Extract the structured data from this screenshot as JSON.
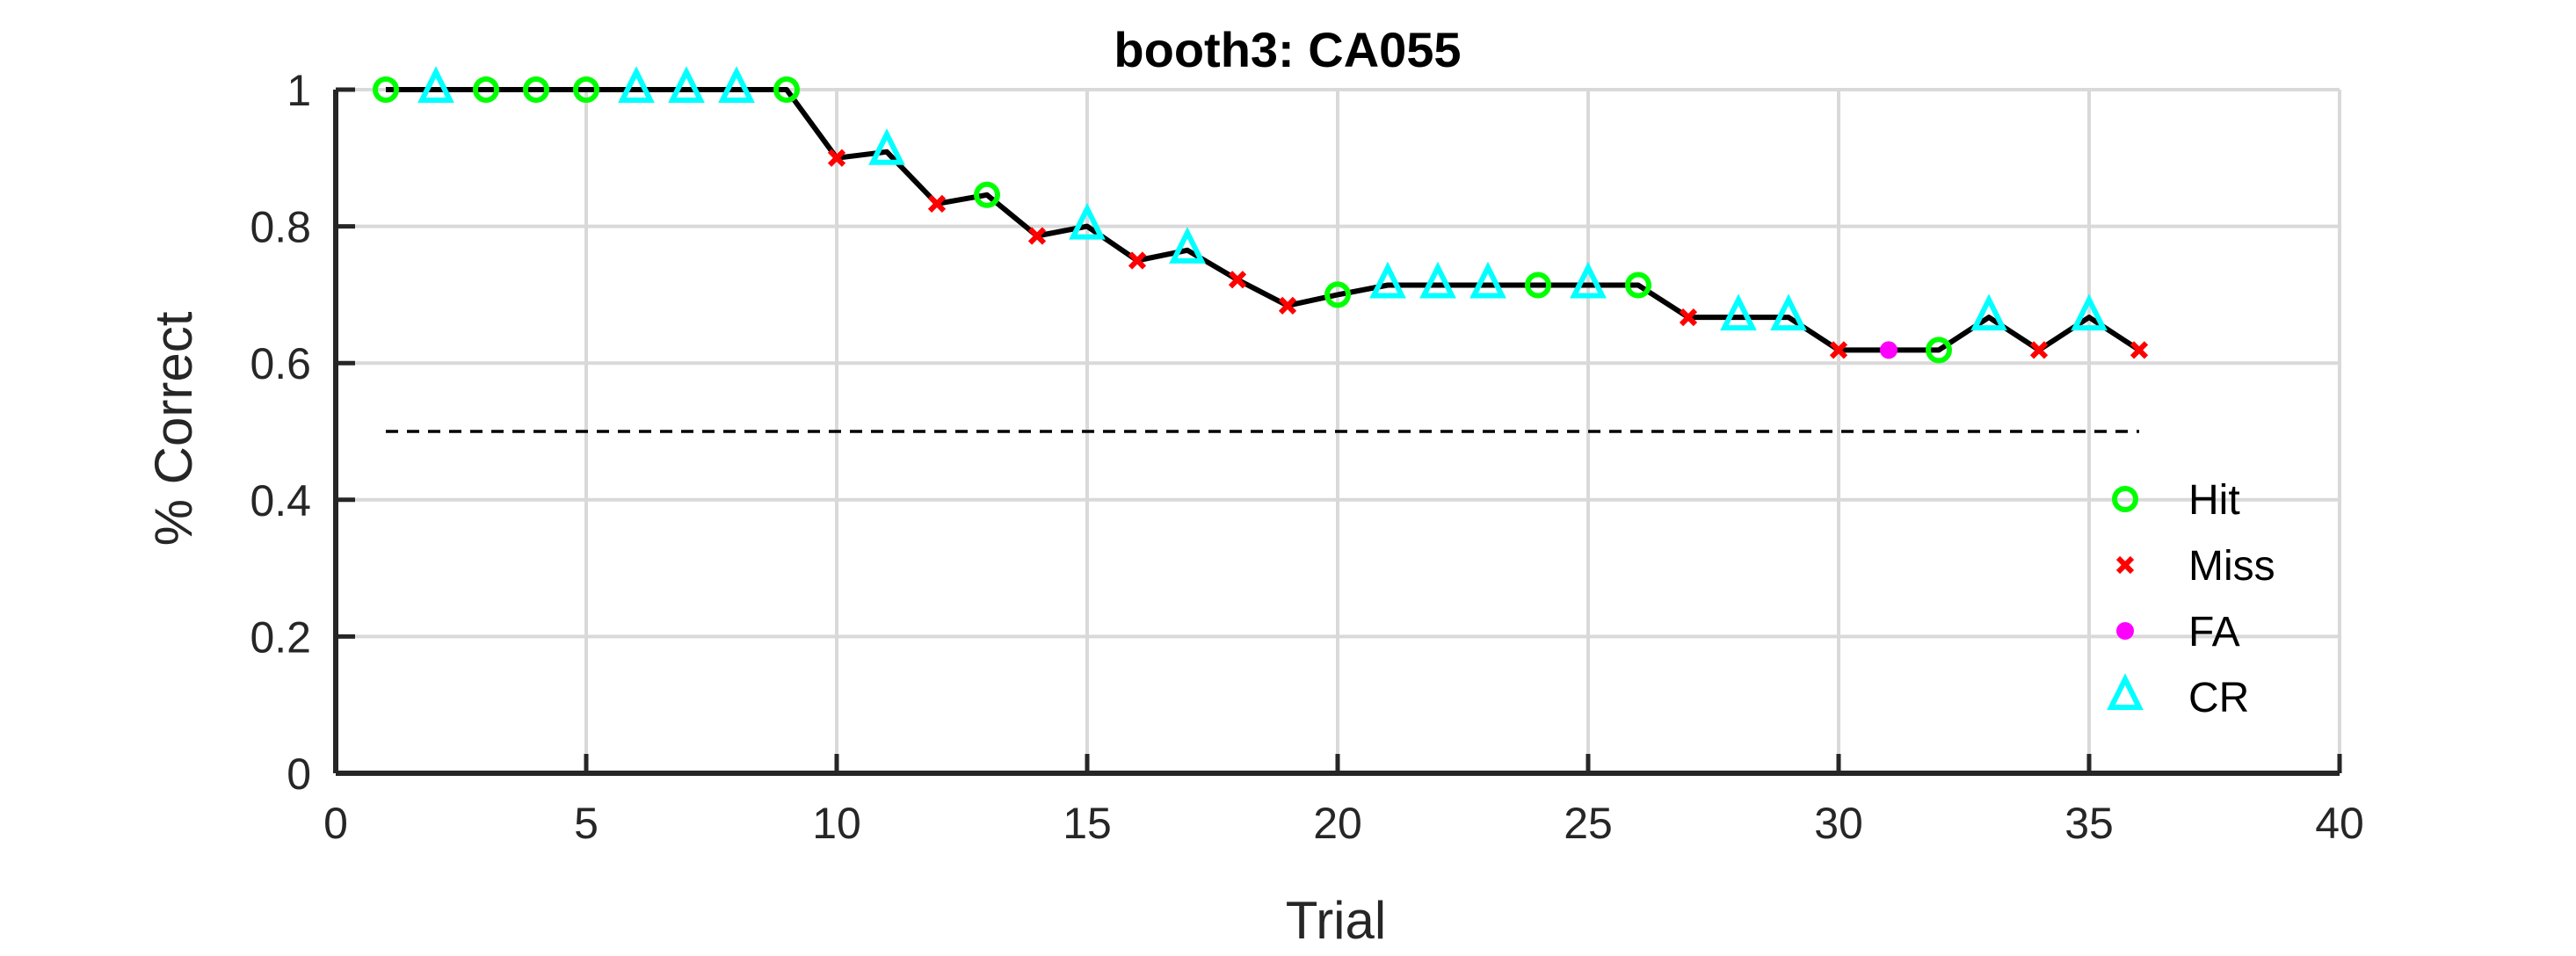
{
  "chart_data": {
    "type": "line",
    "title": "booth3: CA055",
    "xlabel": "Trial",
    "ylabel": "% Correct",
    "xlim": [
      0,
      40
    ],
    "ylim": [
      0,
      1
    ],
    "xticks": [
      "0",
      "5",
      "10",
      "15",
      "20",
      "25",
      "30",
      "35",
      "40"
    ],
    "yticks": [
      "0",
      "0.2",
      "0.4",
      "0.6",
      "0.8",
      "1"
    ],
    "grid": true,
    "legend_position": "bottom-right",
    "chance_level": 0.5,
    "line_color": "#000000",
    "series": [
      {
        "name": "Hit",
        "marker": "circle",
        "color": "#00ff00",
        "points": [
          [
            1,
            1
          ],
          [
            3,
            1
          ],
          [
            4,
            1
          ],
          [
            5,
            1
          ],
          [
            9,
            1
          ],
          [
            13,
            0.846
          ],
          [
            20,
            0.7
          ],
          [
            24,
            0.714
          ],
          [
            26,
            0.714
          ],
          [
            32,
            0.619
          ]
        ]
      },
      {
        "name": "Miss",
        "marker": "x",
        "color": "#ff0000",
        "points": [
          [
            10,
            0.9
          ],
          [
            12,
            0.833
          ],
          [
            14,
            0.786
          ],
          [
            16,
            0.75
          ],
          [
            18,
            0.722
          ],
          [
            19,
            0.684
          ],
          [
            27,
            0.667
          ],
          [
            30,
            0.619
          ],
          [
            34,
            0.619
          ],
          [
            36,
            0.619
          ]
        ]
      },
      {
        "name": "FA",
        "marker": "dot",
        "color": "#ff00ff",
        "points": [
          [
            31,
            0.619
          ]
        ]
      },
      {
        "name": "CR",
        "marker": "triangle",
        "color": "#00ffff",
        "points": [
          [
            2,
            1
          ],
          [
            6,
            1
          ],
          [
            7,
            1
          ],
          [
            8,
            1
          ],
          [
            11,
            0.909
          ],
          [
            15,
            0.8
          ],
          [
            17,
            0.765
          ],
          [
            21,
            0.714
          ],
          [
            22,
            0.714
          ],
          [
            23,
            0.714
          ],
          [
            25,
            0.714
          ],
          [
            28,
            0.667
          ],
          [
            29,
            0.667
          ],
          [
            33,
            0.667
          ],
          [
            35,
            0.667
          ]
        ]
      }
    ]
  }
}
